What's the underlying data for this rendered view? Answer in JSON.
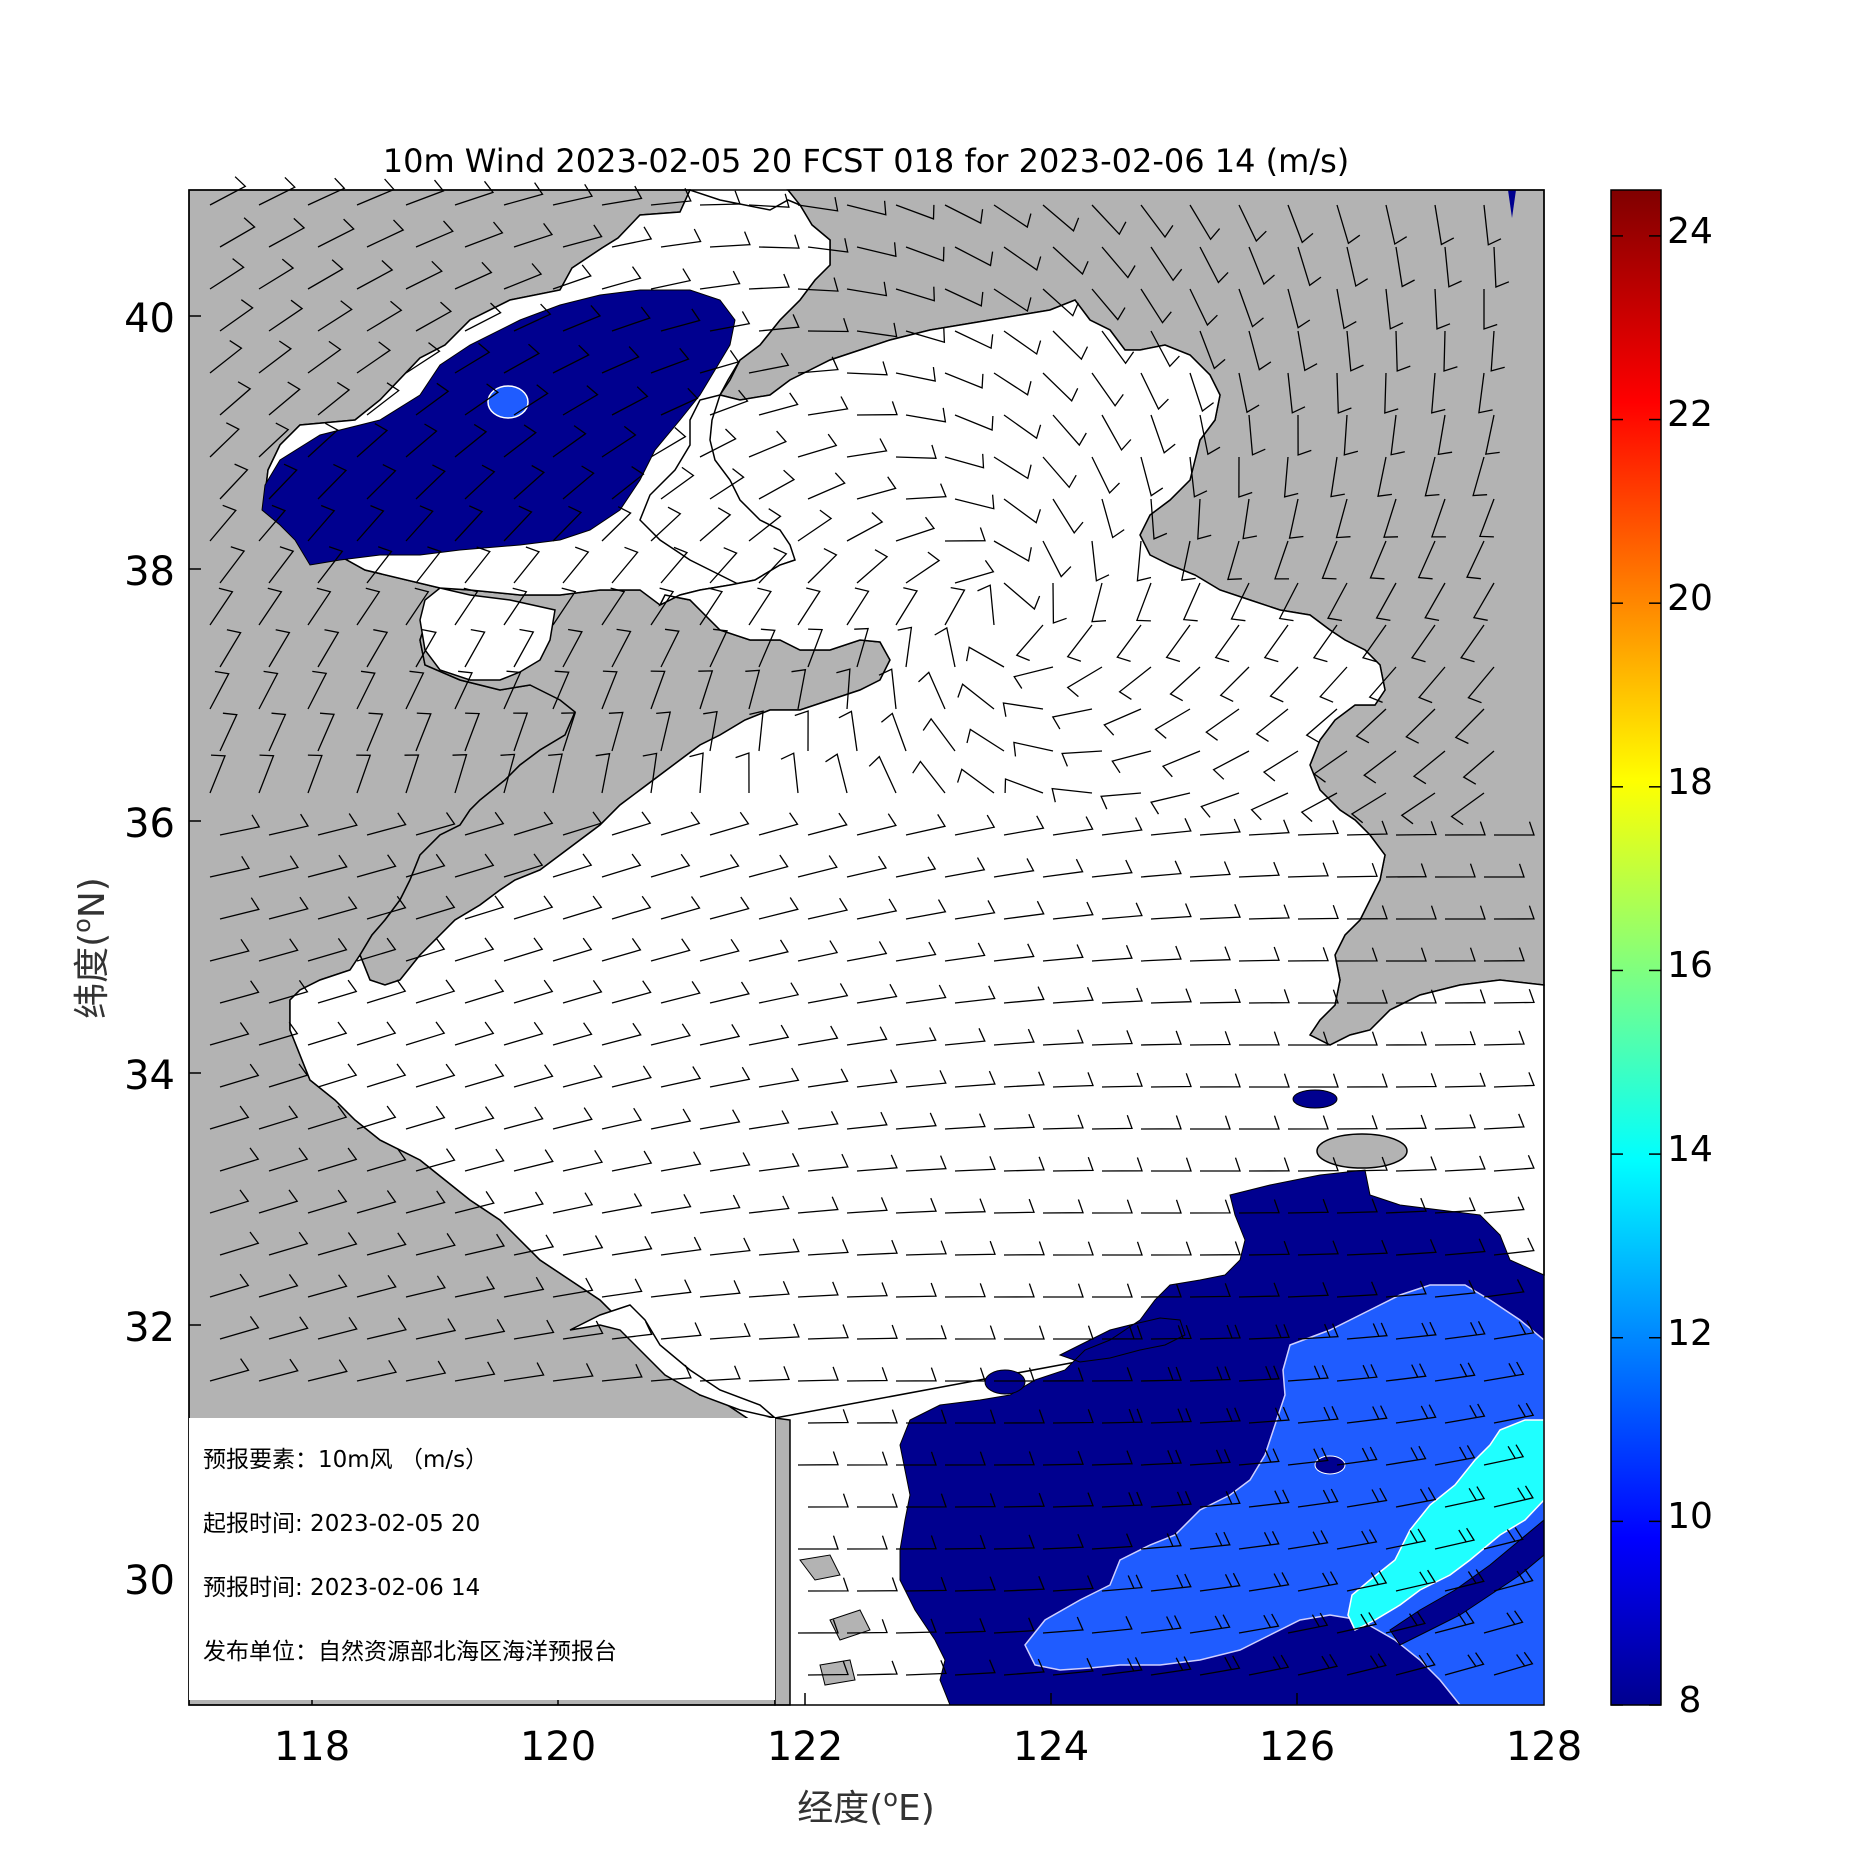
{
  "title": "10m Wind 2023-02-05 20 FCST 018 for 2023-02-06 14 (m/s)",
  "xaxis": {
    "label": "经度(°E)",
    "label_text": "经度(",
    "label_sup": "o",
    "label_unit": "E)",
    "ticks": [
      "118",
      "120",
      "122",
      "124",
      "126",
      "128"
    ],
    "range": [
      117,
      128
    ]
  },
  "yaxis": {
    "label": "纬度(°N)",
    "label_text": "纬度(",
    "label_sup": "o",
    "label_unit": "N)",
    "ticks": [
      "30",
      "32",
      "34",
      "36",
      "38",
      "40"
    ],
    "range": [
      29,
      41
    ]
  },
  "colorbar": {
    "ticks": [
      "8",
      "10",
      "12",
      "14",
      "16",
      "18",
      "20",
      "22",
      "24"
    ],
    "range": [
      8,
      24.5
    ],
    "colormap": "jet"
  },
  "colors": {
    "land": "#b3b3b3",
    "sea": "#ffffff",
    "c8": "#00008f",
    "c10": "#0a2ef0",
    "c12": "#1f5cff",
    "c14": "#1fffff"
  },
  "info": {
    "row1": "预报要素：10m风 （m/s）",
    "row2": "起报时间: 2023-02-05 20",
    "row3": "预报时间: 2023-02-06 14",
    "row4": "发布单位：自然资源部北海区海洋预报台"
  }
}
